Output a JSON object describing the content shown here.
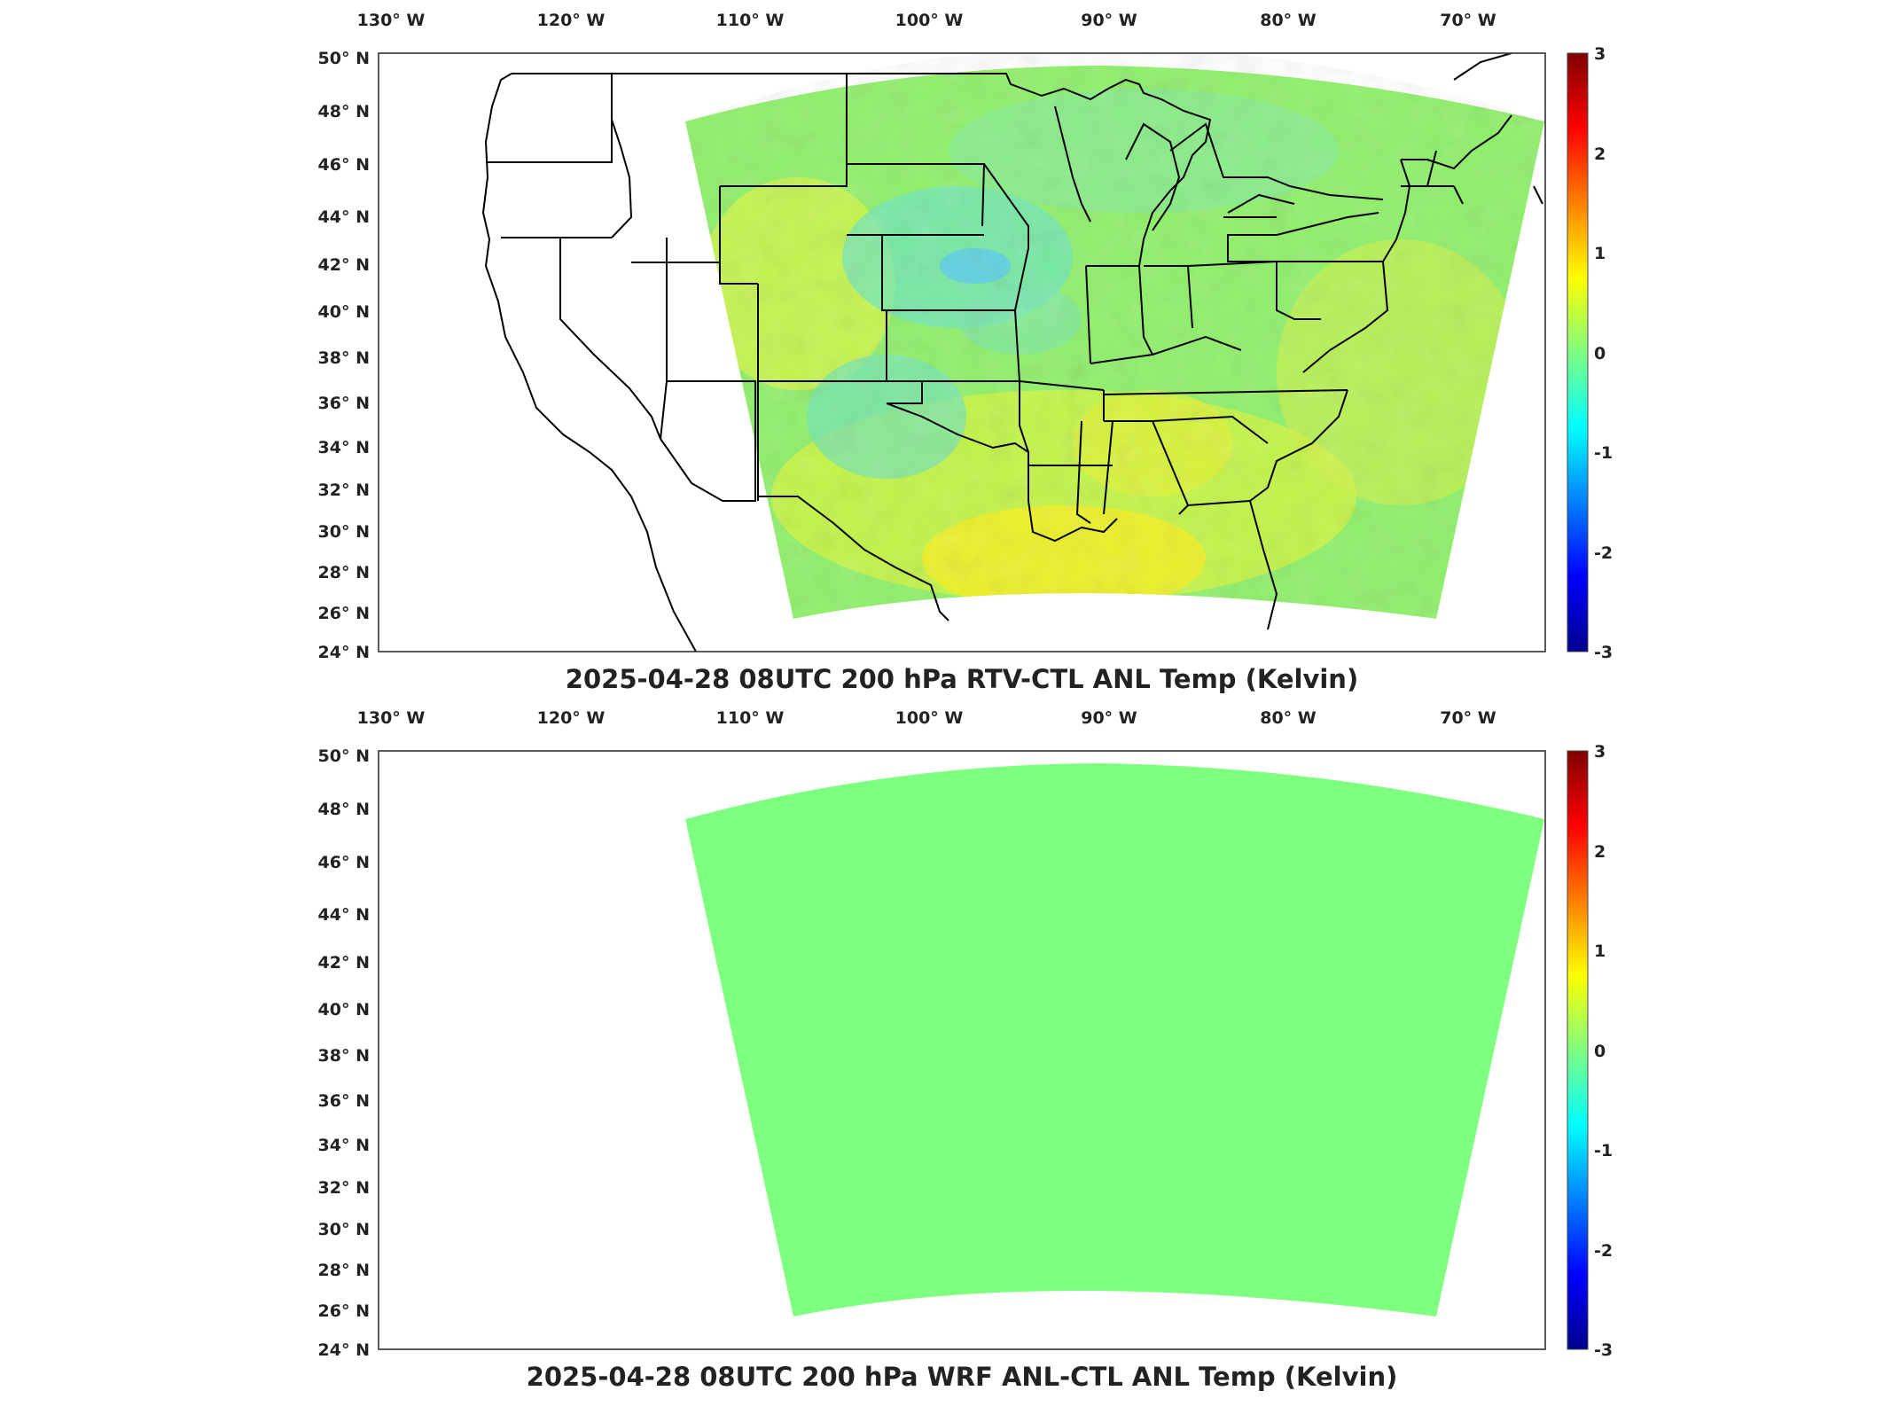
{
  "panels": [
    {
      "title": "2025-04-28 08UTC 200 hPa RTV-CTL ANL Temp (Kelvin)",
      "field": "varied",
      "colorbar_ticks": [
        "3",
        "2",
        "1",
        "0",
        "-1",
        "-2",
        "-3"
      ]
    },
    {
      "title": "2025-04-28 08UTC 200 hPa WRF ANL-CTL ANL Temp (Kelvin)",
      "field": "uniform",
      "colorbar_ticks": [
        "3",
        "2",
        "1",
        "0",
        "-1",
        "-2",
        "-3"
      ]
    }
  ],
  "lon_ticks": [
    "130° W",
    "120° W",
    "110° W",
    "100° W",
    "90° W",
    "80° W",
    "70° W"
  ],
  "lat_ticks": [
    "50° N",
    "48° N",
    "46° N",
    "44° N",
    "42° N",
    "40° N",
    "38° N",
    "36° N",
    "34° N",
    "32° N",
    "30° N",
    "28° N",
    "26° N",
    "24° N"
  ],
  "colorbar": {
    "min": -3,
    "max": 3,
    "colormap": "jet",
    "colors": [
      "#00008f",
      "#0000ff",
      "#00ffff",
      "#7fff7f",
      "#ffff00",
      "#ff0000",
      "#7f0000"
    ]
  }
}
